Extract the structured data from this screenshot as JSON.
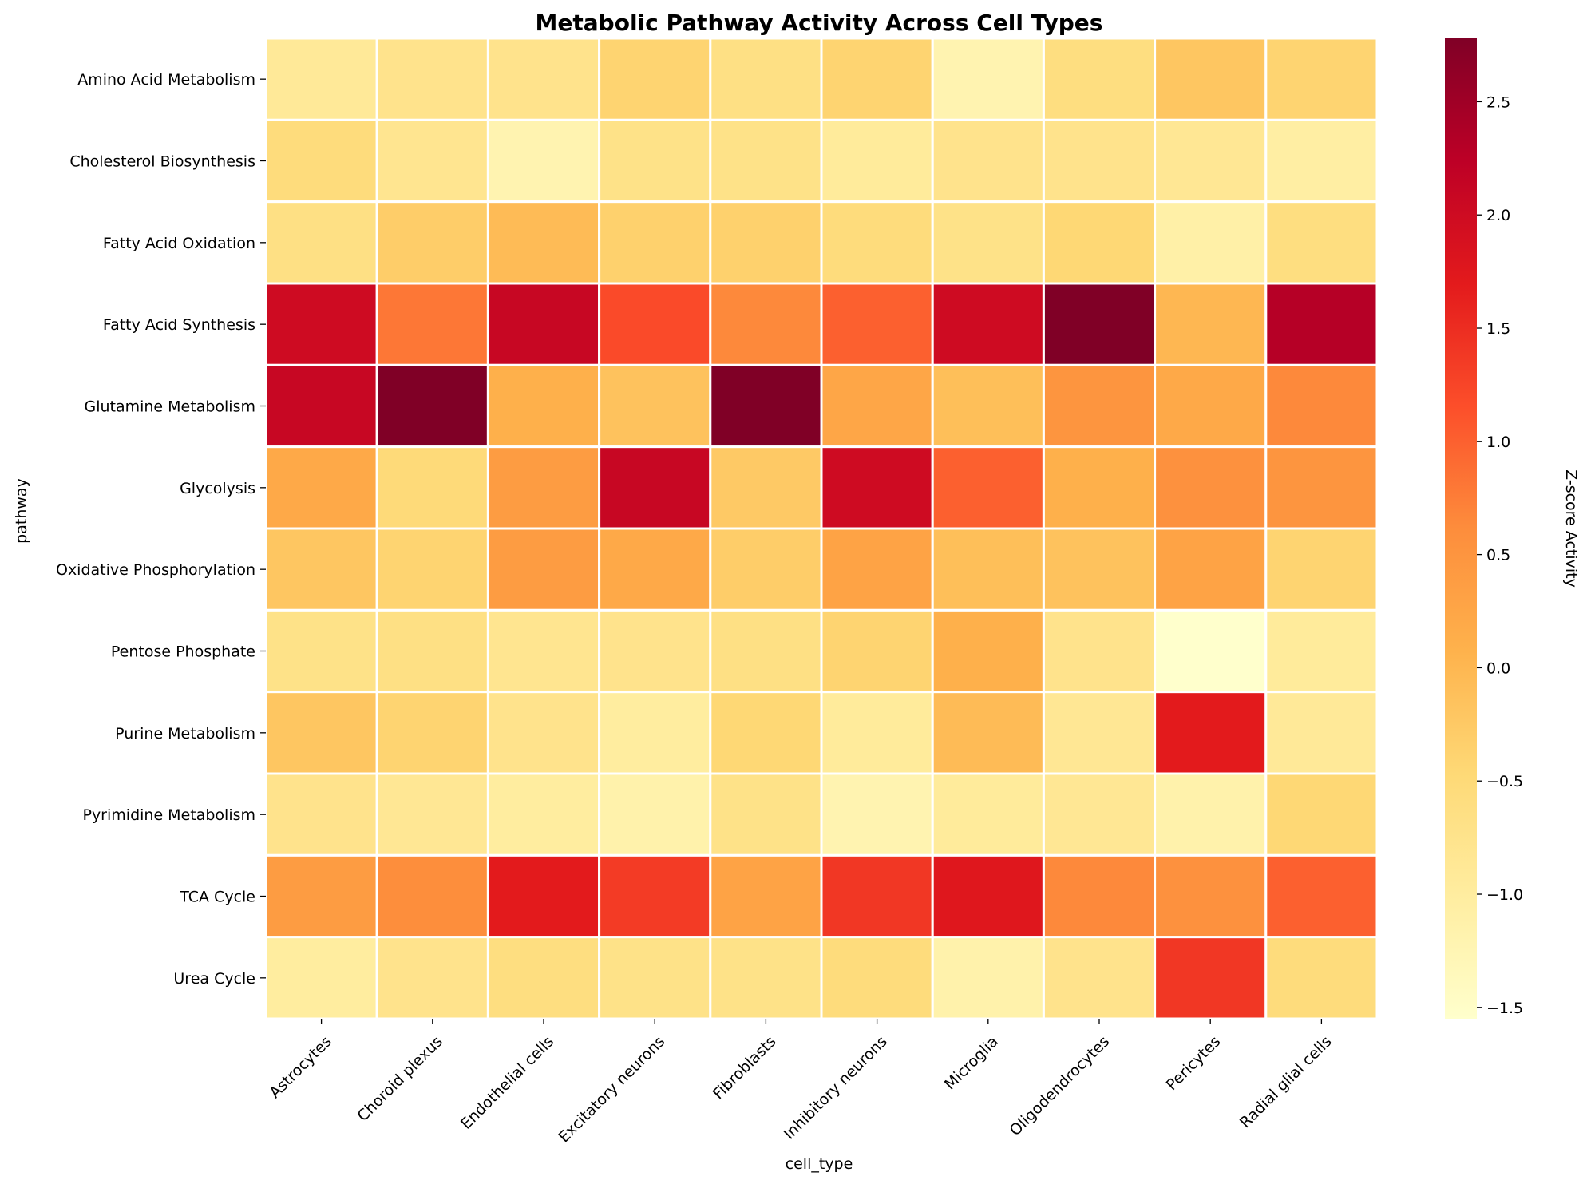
{
  "chart_data": {
    "type": "heatmap",
    "title": "Metabolic Pathway Activity Across Cell Types",
    "xlabel": "cell_type",
    "ylabel": "pathway",
    "colorbar_label": "Z-score Activity",
    "colormap": "YlOrRd",
    "color_range": [
      -1.55,
      2.78
    ],
    "colorbar_ticks": [
      -1.5,
      -1.0,
      -0.5,
      0.0,
      0.5,
      1.0,
      1.5,
      2.0,
      2.5
    ],
    "colorbar_tick_labels": [
      "−1.5",
      "−1.0",
      "−0.5",
      "0.0",
      "0.5",
      "1.0",
      "1.5",
      "2.0",
      "2.5"
    ],
    "columns": [
      "Astrocytes",
      "Choroid plexus",
      "Endothelial cells",
      "Excitatory neurons",
      "Fibroblasts",
      "Inhibitory neurons",
      "Microglia",
      "Oligodendrocytes",
      "Pericytes",
      "Radial glial cells"
    ],
    "rows": [
      "Amino Acid Metabolism",
      "Cholesterol Biosynthesis",
      "Fatty Acid Oxidation",
      "Fatty Acid Synthesis",
      "Glutamine Metabolism",
      "Glycolysis",
      "Oxidative Phosphorylation",
      "Pentose Phosphate",
      "Purine Metabolism",
      "Pyrimidine Metabolism",
      "TCA Cycle",
      "Urea Cycle"
    ],
    "values": [
      [
        -0.9,
        -0.75,
        -0.75,
        -0.4,
        -0.65,
        -0.4,
        -1.2,
        -0.6,
        -0.2,
        -0.4
      ],
      [
        -0.55,
        -0.8,
        -1.2,
        -0.7,
        -0.7,
        -0.95,
        -0.75,
        -0.75,
        -0.85,
        -1.05
      ],
      [
        -0.65,
        -0.3,
        -0.05,
        -0.35,
        -0.35,
        -0.55,
        -0.7,
        -0.45,
        -1.1,
        -0.6
      ],
      [
        2.0,
        0.8,
        2.1,
        1.2,
        0.65,
        1.0,
        2.0,
        2.78,
        0.0,
        2.3
      ],
      [
        2.1,
        2.78,
        0.1,
        -0.15,
        2.78,
        0.25,
        -0.1,
        0.5,
        0.2,
        0.65
      ],
      [
        0.2,
        -0.5,
        0.4,
        2.1,
        -0.25,
        2.0,
        1.0,
        0.1,
        0.55,
        0.5
      ],
      [
        -0.2,
        -0.4,
        0.4,
        0.2,
        -0.3,
        0.3,
        -0.1,
        -0.15,
        0.3,
        -0.4
      ],
      [
        -0.7,
        -0.65,
        -0.8,
        -0.75,
        -0.65,
        -0.4,
        0.1,
        -0.75,
        -1.55,
        -0.95
      ],
      [
        -0.2,
        -0.4,
        -0.75,
        -1.0,
        -0.45,
        -0.95,
        -0.05,
        -0.85,
        1.7,
        -0.9
      ],
      [
        -0.75,
        -0.85,
        -1.0,
        -1.15,
        -0.7,
        -1.2,
        -0.95,
        -0.85,
        -1.15,
        -0.45
      ],
      [
        0.4,
        0.6,
        1.7,
        1.35,
        0.3,
        1.4,
        1.75,
        0.65,
        0.55,
        1.0
      ],
      [
        -1.0,
        -0.75,
        -0.6,
        -0.7,
        -0.7,
        -0.55,
        -1.15,
        -0.75,
        1.4,
        -0.55
      ]
    ]
  }
}
